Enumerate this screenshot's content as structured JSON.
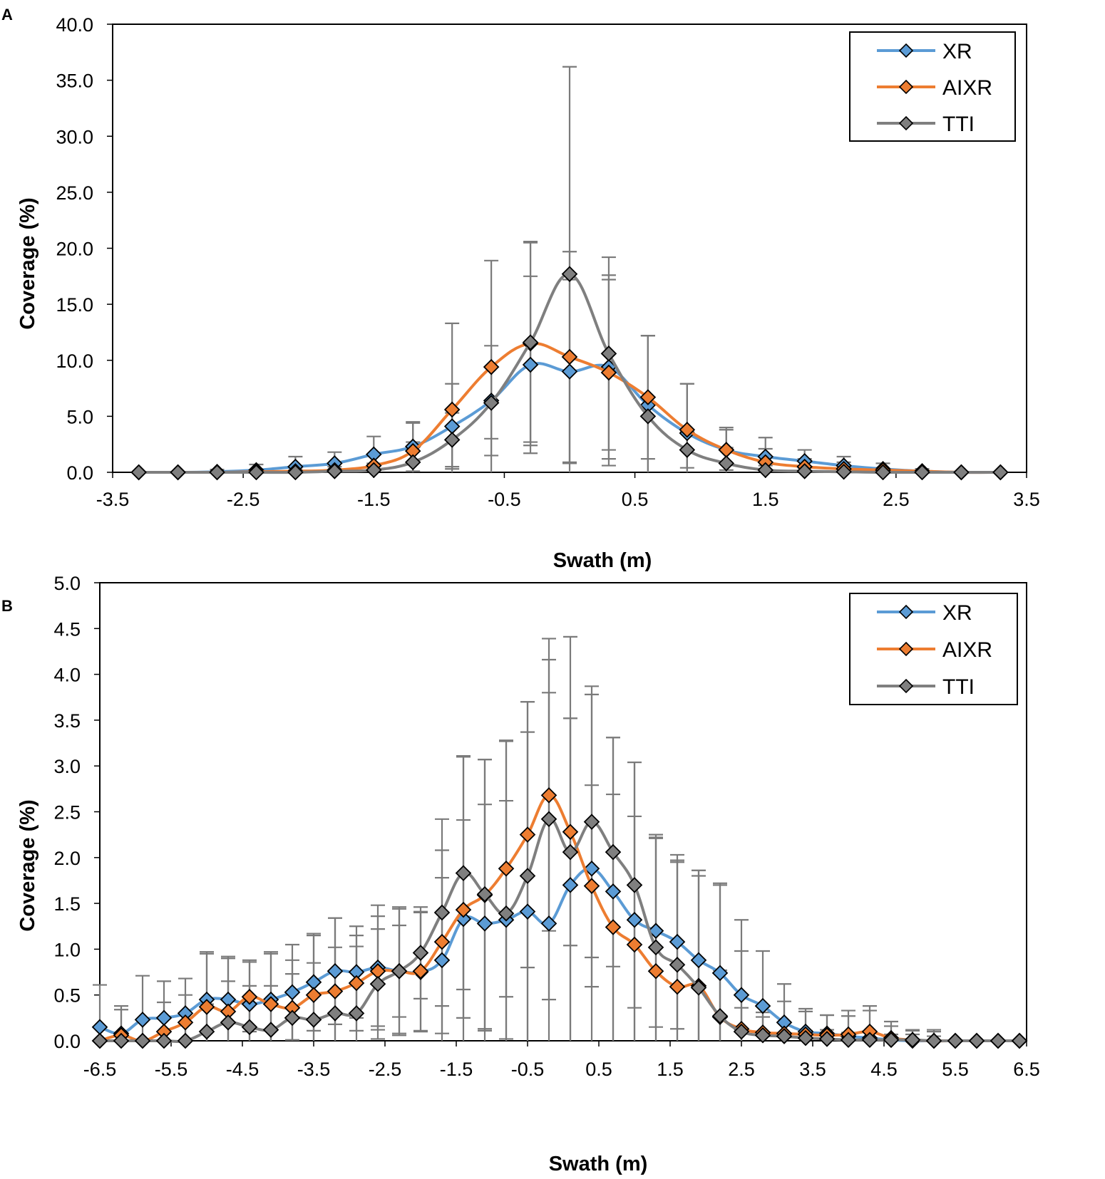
{
  "chart_data": [
    {
      "panel_label": "A",
      "type": "line",
      "xlabel": "Swath (m)",
      "ylabel": "Coverage (%)",
      "xlim": [
        -3.5,
        3.5
      ],
      "ylim": [
        0,
        40
      ],
      "xticks": [
        "-3.5",
        "-2.5",
        "-1.5",
        "-0.5",
        "0.5",
        "1.5",
        "2.5",
        "3.5"
      ],
      "yticks": [
        "0.0",
        "5.0",
        "10.0",
        "15.0",
        "20.0",
        "25.0",
        "30.0",
        "35.0",
        "40.0"
      ],
      "legend_position": "top-right",
      "x": [
        -3.3,
        -3.0,
        -2.7,
        -2.4,
        -2.1,
        -1.8,
        -1.5,
        -1.2,
        -0.9,
        -0.6,
        -0.3,
        0.0,
        0.3,
        0.6,
        0.9,
        1.2,
        1.5,
        1.8,
        2.1,
        2.4,
        2.7,
        3.0,
        3.3
      ],
      "series": [
        {
          "name": "XR",
          "color": "#5b9bd5",
          "values": [
            0.0,
            0.0,
            0.05,
            0.2,
            0.5,
            0.8,
            1.6,
            2.3,
            4.1,
            6.4,
            9.6,
            9.0,
            9.4,
            6.0,
            3.5,
            2.0,
            1.4,
            1.0,
            0.6,
            0.3,
            0.1,
            0.0,
            0.0
          ],
          "err": [
            0.0,
            0.0,
            0.2,
            0.5,
            0.9,
            1.0,
            1.6,
            2.2,
            3.8,
            4.9,
            7.9,
            8.2,
            8.2,
            6.2,
            4.4,
            2.0,
            1.7,
            1.0,
            0.8,
            0.5,
            0.2,
            0.0,
            0.0
          ]
        },
        {
          "name": "AIXR",
          "color": "#ed7d31",
          "values": [
            0.0,
            0.0,
            0.0,
            0.05,
            0.1,
            0.2,
            0.6,
            1.9,
            5.6,
            9.4,
            11.5,
            10.3,
            8.9,
            6.7,
            3.8,
            2.0,
            0.9,
            0.5,
            0.3,
            0.2,
            0.1,
            0.0,
            0.0
          ],
          "err": [
            0.0,
            0.0,
            0.0,
            0.2,
            0.3,
            0.6,
            1.0,
            2.5,
            7.7,
            9.5,
            9.1,
            9.4,
            8.3,
            5.5,
            4.1,
            1.8,
            1.2,
            0.7,
            0.6,
            0.6,
            0.2,
            0.0,
            0.0
          ]
        },
        {
          "name": "TTI",
          "color": "#7f7f7f",
          "values": [
            0.0,
            0.0,
            0.0,
            0.0,
            0.0,
            0.1,
            0.2,
            0.9,
            2.9,
            6.2,
            11.6,
            17.7,
            10.6,
            5.0,
            2.0,
            0.8,
            0.2,
            0.1,
            0.05,
            0.0,
            0.0,
            0.0,
            0.0
          ],
          "err": [
            0.0,
            0.0,
            0.0,
            0.2,
            0.2,
            0.4,
            0.6,
            1.8,
            2.4,
            3.2,
            8.9,
            18.5,
            8.6,
            7.2,
            1.6,
            1.4,
            0.4,
            0.3,
            0.3,
            0.2,
            0.0,
            0.0,
            0.0
          ]
        }
      ]
    },
    {
      "panel_label": "B",
      "type": "line",
      "xlabel": "Swath (m)",
      "ylabel": "Coverage (%)",
      "xlim": [
        -6.5,
        6.5
      ],
      "ylim": [
        0,
        5
      ],
      "xticks": [
        "-6.5",
        "-5.5",
        "-4.5",
        "-3.5",
        "-2.5",
        "-1.5",
        "-0.5",
        "0.5",
        "1.5",
        "2.5",
        "3.5",
        "4.5",
        "5.5",
        "6.5"
      ],
      "yticks": [
        "0.0",
        "0.5",
        "1.0",
        "1.5",
        "2.0",
        "2.5",
        "3.0",
        "3.5",
        "4.0",
        "4.5",
        "5.0"
      ],
      "legend_position": "top-right",
      "x": [
        -6.5,
        -6.2,
        -5.9,
        -5.6,
        -5.3,
        -5.0,
        -4.7,
        -4.4,
        -4.1,
        -3.8,
        -3.5,
        -3.2,
        -2.9,
        -2.6,
        -2.3,
        -2.0,
        -1.7,
        -1.4,
        -1.1,
        -0.8,
        -0.5,
        -0.2,
        0.1,
        0.4,
        0.7,
        1.0,
        1.3,
        1.6,
        1.9,
        2.2,
        2.5,
        2.8,
        3.1,
        3.4,
        3.7,
        4.0,
        4.3,
        4.6,
        4.9,
        5.2,
        5.5,
        5.8,
        6.1,
        6.4
      ],
      "series": [
        {
          "name": "XR",
          "color": "#5b9bd5",
          "values": [
            0.15,
            0.08,
            0.23,
            0.25,
            0.3,
            0.45,
            0.45,
            0.4,
            0.45,
            0.53,
            0.64,
            0.76,
            0.75,
            0.8,
            0.76,
            0.75,
            0.88,
            1.33,
            1.28,
            1.32,
            1.41,
            1.28,
            1.7,
            1.88,
            1.63,
            1.32,
            1.2,
            1.08,
            0.88,
            0.74,
            0.5,
            0.38,
            0.2,
            0.1,
            0.08,
            0.05,
            0.03,
            0.01,
            0.0,
            0.0,
            0.0,
            0.0,
            0.0,
            0.0
          ],
          "err": [
            0.46,
            0.3,
            0.48,
            0.4,
            0.38,
            0.52,
            0.47,
            0.48,
            0.52,
            0.52,
            0.53,
            0.58,
            0.5,
            0.68,
            0.68,
            0.65,
            0.9,
            1.08,
            1.3,
            1.3,
            1.96,
            2.52,
            1.82,
            1.9,
            1.68,
            1.72,
            1.05,
            0.95,
            0.98,
            0.96,
            0.82,
            0.6,
            0.42,
            0.25,
            0.2,
            0.28,
            0.3,
            0.2,
            0.12,
            0.12,
            0.0,
            0.0,
            0.0,
            0.0
          ]
        },
        {
          "name": "AIXR",
          "color": "#ed7d31",
          "values": [
            0.0,
            0.06,
            0.0,
            0.1,
            0.2,
            0.37,
            0.32,
            0.48,
            0.4,
            0.36,
            0.5,
            0.54,
            0.63,
            0.76,
            0.76,
            0.76,
            1.08,
            1.43,
            1.59,
            1.88,
            2.25,
            2.68,
            2.28,
            1.69,
            1.24,
            1.05,
            0.76,
            0.59,
            0.6,
            0.26,
            0.13,
            0.09,
            0.08,
            0.07,
            0.06,
            0.07,
            0.1,
            0.03,
            0.01,
            0.0,
            0.0,
            0.0,
            0.0,
            0.0
          ],
          "err": [
            0.0,
            0.28,
            0.0,
            0.32,
            0.3,
            0.58,
            0.58,
            0.38,
            0.55,
            0.52,
            0.65,
            0.8,
            0.52,
            0.6,
            0.7,
            0.65,
            1.0,
            1.68,
            1.48,
            1.4,
            1.45,
            1.48,
            1.24,
            1.1,
            1.45,
            1.4,
            1.45,
            1.38,
            1.2,
            1.46,
            0.85,
            0.22,
            0.35,
            0.25,
            0.22,
            0.2,
            0.28,
            0.13,
            0.1,
            0.1,
            0.0,
            0.0,
            0.0,
            0.0
          ]
        },
        {
          "name": "TTI",
          "color": "#7f7f7f",
          "values": [
            0.0,
            0.0,
            0.0,
            0.0,
            0.0,
            0.1,
            0.2,
            0.15,
            0.12,
            0.25,
            0.23,
            0.3,
            0.3,
            0.62,
            0.76,
            0.96,
            1.4,
            1.83,
            1.6,
            1.39,
            1.8,
            2.42,
            2.06,
            2.39,
            2.06,
            1.7,
            1.02,
            0.83,
            0.58,
            0.27,
            0.1,
            0.06,
            0.05,
            0.03,
            0.02,
            0.01,
            0.01,
            0.01,
            0.01,
            0.0,
            0.0,
            0.0,
            0.0,
            0.0
          ],
          "err": [
            0.0,
            0.0,
            0.0,
            0.0,
            0.0,
            0.3,
            0.45,
            0.45,
            0.48,
            0.48,
            0.62,
            0.72,
            0.73,
            0.6,
            0.5,
            0.5,
            1.02,
            1.27,
            1.47,
            1.88,
            1.9,
            1.97,
            2.35,
            1.48,
            1.25,
            1.34,
            1.2,
            1.12,
            1.28,
            0.5,
            0.26,
            0.2,
            0.15,
            0.08,
            0.1,
            0.08,
            0.08,
            0.06,
            0.06,
            0.05,
            0.0,
            0.0,
            0.0,
            0.0
          ]
        }
      ]
    }
  ]
}
